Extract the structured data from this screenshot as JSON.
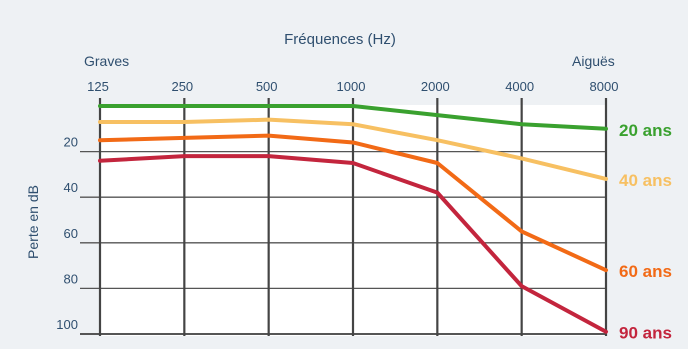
{
  "chart_data": {
    "type": "line",
    "title": "Fréquences (Hz)",
    "left_title": "Graves",
    "right_title": "Aiguës",
    "ylabel": "Perte en dB",
    "x": [
      125,
      250,
      500,
      1000,
      2000,
      4000,
      8000
    ],
    "x_tick_labels": [
      "125",
      "250",
      "500",
      "1000",
      "2000",
      "4000",
      "8000"
    ],
    "y_ticks": [
      20,
      40,
      60,
      80,
      100
    ],
    "y_tick_labels": [
      "20",
      "40",
      "60",
      "80",
      "100"
    ],
    "ylim": [
      0,
      100
    ],
    "y_inverted": true,
    "x_scale": "log2",
    "grid": true,
    "legend_placement": "right",
    "series": [
      {
        "name": "20 ans",
        "color": "#3aa12f",
        "values": [
          0,
          0,
          0,
          0,
          4,
          8,
          10
        ]
      },
      {
        "name": "40 ans",
        "color": "#f7c062",
        "values": [
          7,
          7,
          6,
          8,
          15,
          23,
          32
        ]
      },
      {
        "name": "60 ans",
        "color": "#f26a16",
        "values": [
          15,
          14,
          13,
          16,
          25,
          55,
          72
        ]
      },
      {
        "name": "90 ans",
        "color": "#c3253d",
        "values": [
          24,
          22,
          22,
          25,
          38,
          79,
          99
        ]
      }
    ]
  }
}
